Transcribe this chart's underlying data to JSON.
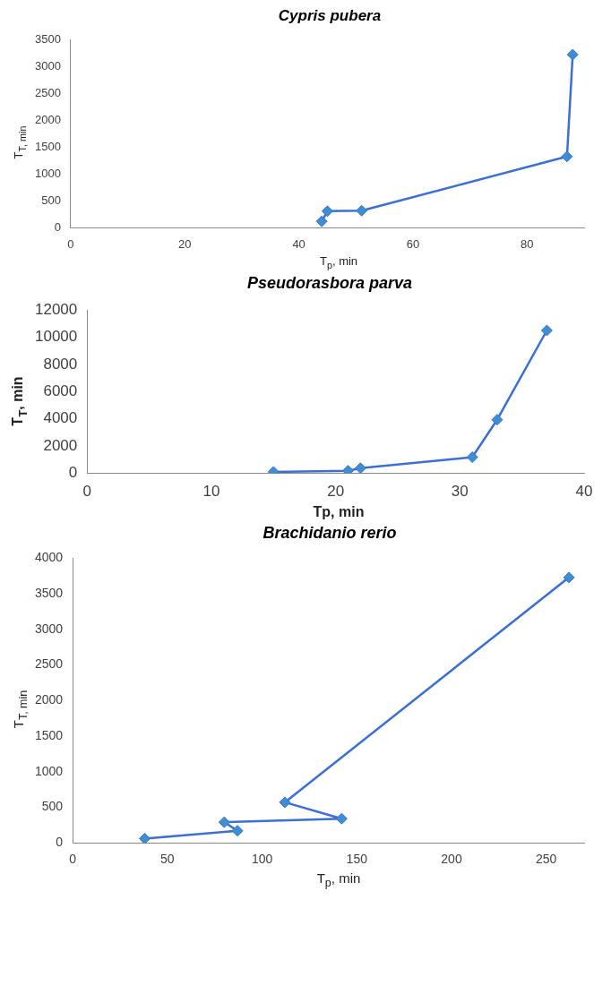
{
  "chart_data": [
    {
      "type": "line",
      "title": "Cypris pubera",
      "xlabel": "T$_{p}$, min",
      "ylabel": "T$_{T, min}$",
      "x": [
        44,
        45,
        51,
        87,
        88
      ],
      "series": [
        {
          "color": "#3a6fd8",
          "values": [
            120,
            310,
            320,
            1330,
            3230
          ]
        }
      ],
      "xlim": [
        0,
        90
      ],
      "xticks": [
        0,
        20,
        40,
        60,
        80
      ],
      "ylim": [
        0,
        3500
      ],
      "yticks": [
        0,
        500,
        1000,
        1500,
        2000,
        2500,
        3000,
        3500
      ],
      "grid": false,
      "legend": false,
      "marker": "diamond",
      "line_style": "solid"
    },
    {
      "type": "line",
      "title": "Pseudorasbora parva",
      "xlabel": "Tp, min",
      "ylabel": "T$_{T}$, min",
      "x": [
        15,
        21,
        22,
        31,
        33,
        37
      ],
      "series": [
        {
          "color": "#3a6fd8",
          "values": [
            110,
            190,
            380,
            1190,
            3940,
            10500
          ]
        }
      ],
      "xlim": [
        0,
        40
      ],
      "xticks": [
        0,
        10,
        20,
        30,
        40
      ],
      "ylim": [
        0,
        12000
      ],
      "yticks": [
        0,
        2000,
        4000,
        6000,
        8000,
        10000,
        12000
      ],
      "grid": false,
      "legend": false,
      "marker": "diamond",
      "line_style": "solid"
    },
    {
      "type": "line",
      "title": "Brachidanio rerio",
      "xlabel": "T$_{p}$, min",
      "ylabel": "T$_{T, min}$",
      "x": [
        38,
        87,
        80,
        142,
        112,
        262
      ],
      "series": [
        {
          "color": "#3a6fd8",
          "values": [
            60,
            170,
            290,
            340,
            570,
            3730
          ]
        }
      ],
      "xlim": [
        0,
        270
      ],
      "xticks": [
        0,
        50,
        100,
        150,
        200,
        250
      ],
      "ylim": [
        0,
        4000
      ],
      "yticks": [
        0,
        500,
        1000,
        1500,
        2000,
        2500,
        3000,
        3500,
        4000
      ],
      "grid": false,
      "legend": false,
      "marker": "diamond",
      "line_style": "solid"
    }
  ]
}
